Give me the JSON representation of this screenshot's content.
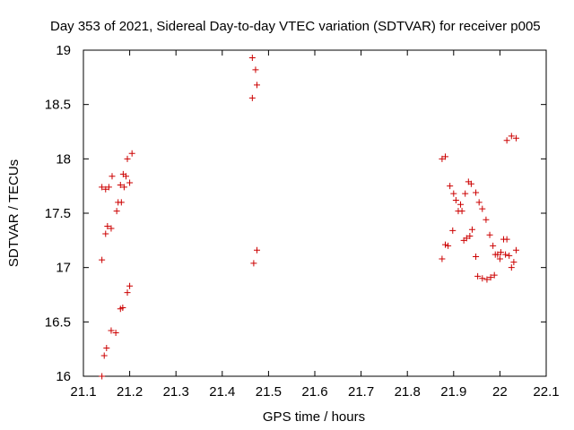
{
  "chart_data": {
    "type": "scatter",
    "title": "Day 353 of 2021, Sidereal Day-to-day VTEC variation (SDTVAR) for receiver p005",
    "xlabel": "GPS time / hours",
    "ylabel": "SDTVAR / TECUs",
    "xlim": [
      21.1,
      22.1
    ],
    "ylim": [
      16,
      19
    ],
    "x_ticks": [
      "21.1",
      "21.2",
      "21.3",
      "21.4",
      "21.5",
      "21.6",
      "21.7",
      "21.8",
      "21.9",
      "22",
      "22.1"
    ],
    "y_ticks": [
      "16",
      "16.5",
      "17",
      "17.5",
      "18",
      "18.5",
      "19"
    ],
    "grid": false,
    "marker": "+",
    "color": "#cc0000",
    "series": [
      {
        "name": "SDTVAR",
        "points": [
          [
            21.14,
            16.0
          ],
          [
            21.145,
            16.19
          ],
          [
            21.15,
            16.26
          ],
          [
            21.16,
            16.42
          ],
          [
            21.17,
            16.4
          ],
          [
            21.18,
            16.62
          ],
          [
            21.185,
            16.63
          ],
          [
            21.195,
            16.77
          ],
          [
            21.2,
            16.83
          ],
          [
            21.14,
            17.07
          ],
          [
            21.148,
            17.31
          ],
          [
            21.152,
            17.38
          ],
          [
            21.16,
            17.36
          ],
          [
            21.172,
            17.52
          ],
          [
            21.175,
            17.6
          ],
          [
            21.182,
            17.6
          ],
          [
            21.188,
            17.74
          ],
          [
            21.14,
            17.74
          ],
          [
            21.148,
            17.72
          ],
          [
            21.155,
            17.74
          ],
          [
            21.162,
            17.84
          ],
          [
            21.18,
            17.76
          ],
          [
            21.186,
            17.86
          ],
          [
            21.192,
            17.84
          ],
          [
            21.2,
            17.78
          ],
          [
            21.195,
            18.0
          ],
          [
            21.205,
            18.05
          ],
          [
            21.465,
            18.93
          ],
          [
            21.472,
            18.82
          ],
          [
            21.475,
            18.68
          ],
          [
            21.465,
            18.56
          ],
          [
            21.475,
            17.16
          ],
          [
            21.468,
            17.04
          ],
          [
            21.875,
            17.08
          ],
          [
            21.882,
            17.21
          ],
          [
            21.888,
            17.2
          ],
          [
            21.898,
            17.34
          ],
          [
            21.875,
            18.0
          ],
          [
            21.882,
            18.02
          ],
          [
            21.892,
            17.75
          ],
          [
            21.9,
            17.68
          ],
          [
            21.905,
            17.62
          ],
          [
            21.91,
            17.52
          ],
          [
            21.915,
            17.58
          ],
          [
            21.918,
            17.52
          ],
          [
            21.925,
            17.68
          ],
          [
            21.922,
            17.25
          ],
          [
            21.928,
            17.27
          ],
          [
            21.935,
            17.29
          ],
          [
            21.94,
            17.35
          ],
          [
            21.932,
            17.79
          ],
          [
            21.938,
            17.77
          ],
          [
            21.948,
            17.69
          ],
          [
            21.955,
            17.6
          ],
          [
            21.962,
            17.54
          ],
          [
            21.97,
            17.44
          ],
          [
            21.978,
            17.3
          ],
          [
            21.948,
            17.1
          ],
          [
            21.952,
            16.92
          ],
          [
            21.962,
            16.9
          ],
          [
            21.972,
            16.89
          ],
          [
            21.98,
            16.91
          ],
          [
            21.988,
            16.93
          ],
          [
            21.985,
            17.2
          ],
          [
            21.99,
            17.12
          ],
          [
            21.995,
            17.12
          ],
          [
            22.0,
            17.08
          ],
          [
            22.002,
            17.14
          ],
          [
            22.008,
            17.26
          ],
          [
            22.015,
            17.26
          ],
          [
            22.012,
            17.12
          ],
          [
            22.02,
            17.11
          ],
          [
            22.025,
            17.0
          ],
          [
            22.03,
            17.05
          ],
          [
            22.035,
            17.16
          ],
          [
            22.015,
            18.17
          ],
          [
            22.025,
            18.21
          ],
          [
            22.035,
            18.19
          ]
        ]
      }
    ]
  }
}
